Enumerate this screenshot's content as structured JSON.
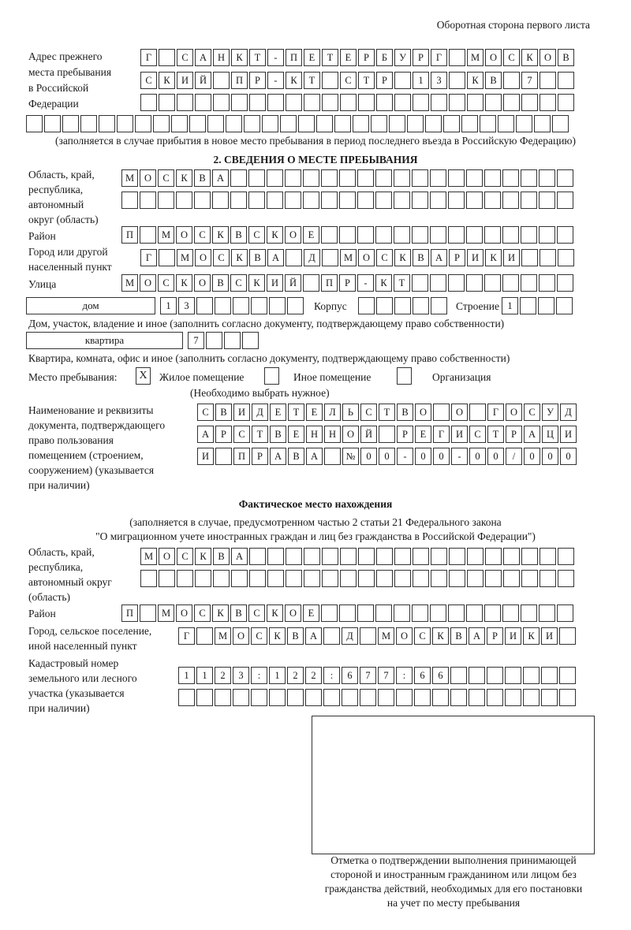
{
  "header": "Оборотная сторона первого листа",
  "previous_address": {
    "label": "Адрес прежнего\nместа пребывания\nв Российской\nФедерации",
    "rows": [
      [
        "Г",
        "",
        "С",
        "А",
        "Н",
        "К",
        "Т",
        "-",
        "П",
        "Е",
        "Т",
        "Е",
        "Р",
        "Б",
        "У",
        "Р",
        "Г",
        "",
        "М",
        "О",
        "С",
        "К",
        "О",
        "В"
      ],
      [
        "С",
        "К",
        "И",
        "Й",
        "",
        "П",
        "Р",
        "-",
        "К",
        "Т",
        "",
        "С",
        "Т",
        "Р",
        "",
        "1",
        "3",
        "",
        "К",
        "В",
        "",
        "7",
        "",
        ""
      ],
      [
        "",
        "",
        "",
        "",
        "",
        "",
        "",
        "",
        "",
        "",
        "",
        "",
        "",
        "",
        "",
        "",
        "",
        "",
        "",
        "",
        "",
        "",
        "",
        ""
      ],
      [
        "",
        "",
        "",
        "",
        "",
        "",
        "",
        "",
        "",
        "",
        "",
        "",
        "",
        "",
        "",
        "",
        "",
        "",
        "",
        "",
        "",
        "",
        "",
        "",
        "",
        "",
        "",
        "",
        "",
        ""
      ]
    ],
    "note": "(заполняется в случае прибытия в новое место пребывания в период последнего въезда в Российскую Федерацию)"
  },
  "section2": {
    "title": "2. СВЕДЕНИЯ О МЕСТЕ ПРЕБЫВАНИЯ",
    "region_label": "Область, край,\nреспублика,\nавтономный\nокруг (область)",
    "region_rows": [
      [
        "М",
        "О",
        "С",
        "К",
        "В",
        "А",
        "",
        "",
        "",
        "",
        "",
        "",
        "",
        "",
        "",
        "",
        "",
        "",
        "",
        "",
        "",
        "",
        "",
        "",
        ""
      ],
      [
        "",
        "",
        "",
        "",
        "",
        "",
        "",
        "",
        "",
        "",
        "",
        "",
        "",
        "",
        "",
        "",
        "",
        "",
        "",
        "",
        "",
        "",
        "",
        "",
        ""
      ]
    ],
    "district_label": "Район",
    "district_row": [
      "П",
      "",
      "М",
      "О",
      "С",
      "К",
      "В",
      "С",
      "К",
      "О",
      "Е",
      "",
      "",
      "",
      "",
      "",
      "",
      "",
      "",
      "",
      "",
      "",
      "",
      "",
      ""
    ],
    "city_label": "Город или другой\nнаселенный пункт",
    "city_row": [
      "Г",
      "",
      "М",
      "О",
      "С",
      "К",
      "В",
      "А",
      "",
      "Д",
      "",
      "М",
      "О",
      "С",
      "К",
      "В",
      "А",
      "Р",
      "И",
      "К",
      "И",
      "",
      "",
      ""
    ],
    "street_label": "Улица",
    "street_row": [
      "М",
      "О",
      "С",
      "К",
      "О",
      "В",
      "С",
      "К",
      "И",
      "Й",
      "",
      "П",
      "Р",
      "-",
      "К",
      "Т",
      "",
      "",
      "",
      "",
      "",
      "",
      "",
      "",
      ""
    ],
    "house_type": "дом",
    "house_cells": [
      "1",
      "3",
      "",
      "",
      "",
      "",
      "",
      ""
    ],
    "korpus_label": "Корпус",
    "korpus_cells": [
      "",
      "",
      "",
      "",
      ""
    ],
    "building_label": "Строение",
    "building_cells": [
      "1",
      "",
      "",
      ""
    ],
    "house_note": "Дом, участок, владение и иное (заполнить согласно документу, подтверждающему право собственности)",
    "apartment_type": "квартира",
    "apartment_cells": [
      "7",
      "",
      "",
      ""
    ],
    "apartment_note": "Квартира, комната, офис и иное (заполнить согласно документу, подтверждающему право собственности)",
    "stay_place_label": "Место пребывания:",
    "stay_options": [
      {
        "label": "Жилое помещение",
        "mark": "X",
        "checked": true
      },
      {
        "label": "Иное помещение",
        "mark": "",
        "checked": false
      },
      {
        "label": "Организация",
        "mark": "",
        "checked": false
      }
    ],
    "stay_note": "(Необходимо выбрать нужное)",
    "document_label": "Наименование и реквизиты\nдокумента, подтверждающего\nправо пользования\nпомещением (строением,\nсооружением) (указывается\nпри наличии)",
    "document_rows": [
      [
        "С",
        "В",
        "И",
        "Д",
        "Е",
        "Т",
        "Е",
        "Л",
        "Ь",
        "С",
        "Т",
        "В",
        "О",
        "",
        "О",
        "",
        "Г",
        "О",
        "С",
        "У",
        "Д"
      ],
      [
        "А",
        "Р",
        "С",
        "Т",
        "В",
        "Е",
        "Н",
        "Н",
        "О",
        "Й",
        "",
        "Р",
        "Е",
        "Г",
        "И",
        "С",
        "Т",
        "Р",
        "А",
        "Ц",
        "И"
      ],
      [
        "И",
        "",
        "П",
        "Р",
        "А",
        "В",
        "А",
        "",
        "№",
        "0",
        "0",
        "-",
        "0",
        "0",
        "-",
        "0",
        "0",
        "/",
        "0",
        "0",
        "0"
      ]
    ]
  },
  "actual": {
    "title": "Фактическое место нахождения",
    "note_line1": "(заполняется в случае, предусмотренном частью 2 статьи 21 Федерального закона",
    "note_line2": "\"О миграционном учете иностранных граждан и лиц без гражданства в Российской Федерации\")",
    "region_label": "Область, край,\nреспублика,\nавтономный округ\n(область)",
    "region_rows": [
      [
        "М",
        "О",
        "С",
        "К",
        "В",
        "А",
        "",
        "",
        "",
        "",
        "",
        "",
        "",
        "",
        "",
        "",
        "",
        "",
        "",
        "",
        "",
        "",
        "",
        ""
      ],
      [
        "",
        "",
        "",
        "",
        "",
        "",
        "",
        "",
        "",
        "",
        "",
        "",
        "",
        "",
        "",
        "",
        "",
        "",
        "",
        "",
        "",
        "",
        "",
        ""
      ]
    ],
    "district_label": "Район",
    "district_row": [
      "П",
      "",
      "М",
      "О",
      "С",
      "К",
      "В",
      "С",
      "К",
      "О",
      "Е",
      "",
      "",
      "",
      "",
      "",
      "",
      "",
      "",
      "",
      "",
      "",
      "",
      "",
      ""
    ],
    "city_label": "Город, сельское поселение,\nиной населенный пункт",
    "city_row": [
      "Г",
      "",
      "М",
      "О",
      "С",
      "К",
      "В",
      "А",
      "",
      "Д",
      "",
      "М",
      "О",
      "С",
      "К",
      "В",
      "А",
      "Р",
      "И",
      "К",
      "И",
      ""
    ],
    "cadastral_label": "Кадастровый номер\nземельного или лесного\nучастка (указывается\nпри наличии)",
    "cadastral_rows": [
      [
        "1",
        "1",
        "2",
        "3",
        ":",
        "1",
        "2",
        "2",
        ":",
        "6",
        "7",
        "7",
        ":",
        "6",
        "6",
        "",
        "",
        "",
        "",
        "",
        "",
        ""
      ],
      [
        "",
        "",
        "",
        "",
        "",
        "",
        "",
        "",
        "",
        "",
        "",
        "",
        "",
        "",
        "",
        "",
        "",
        "",
        "",
        "",
        "",
        ""
      ]
    ]
  },
  "stamp_caption": "Отметка о подтверждении выполнения принимающей\nстороной и иностранным гражданином или лицом без\nгражданства действий, необходимых для его постановки\nна учет по месту пребывания"
}
